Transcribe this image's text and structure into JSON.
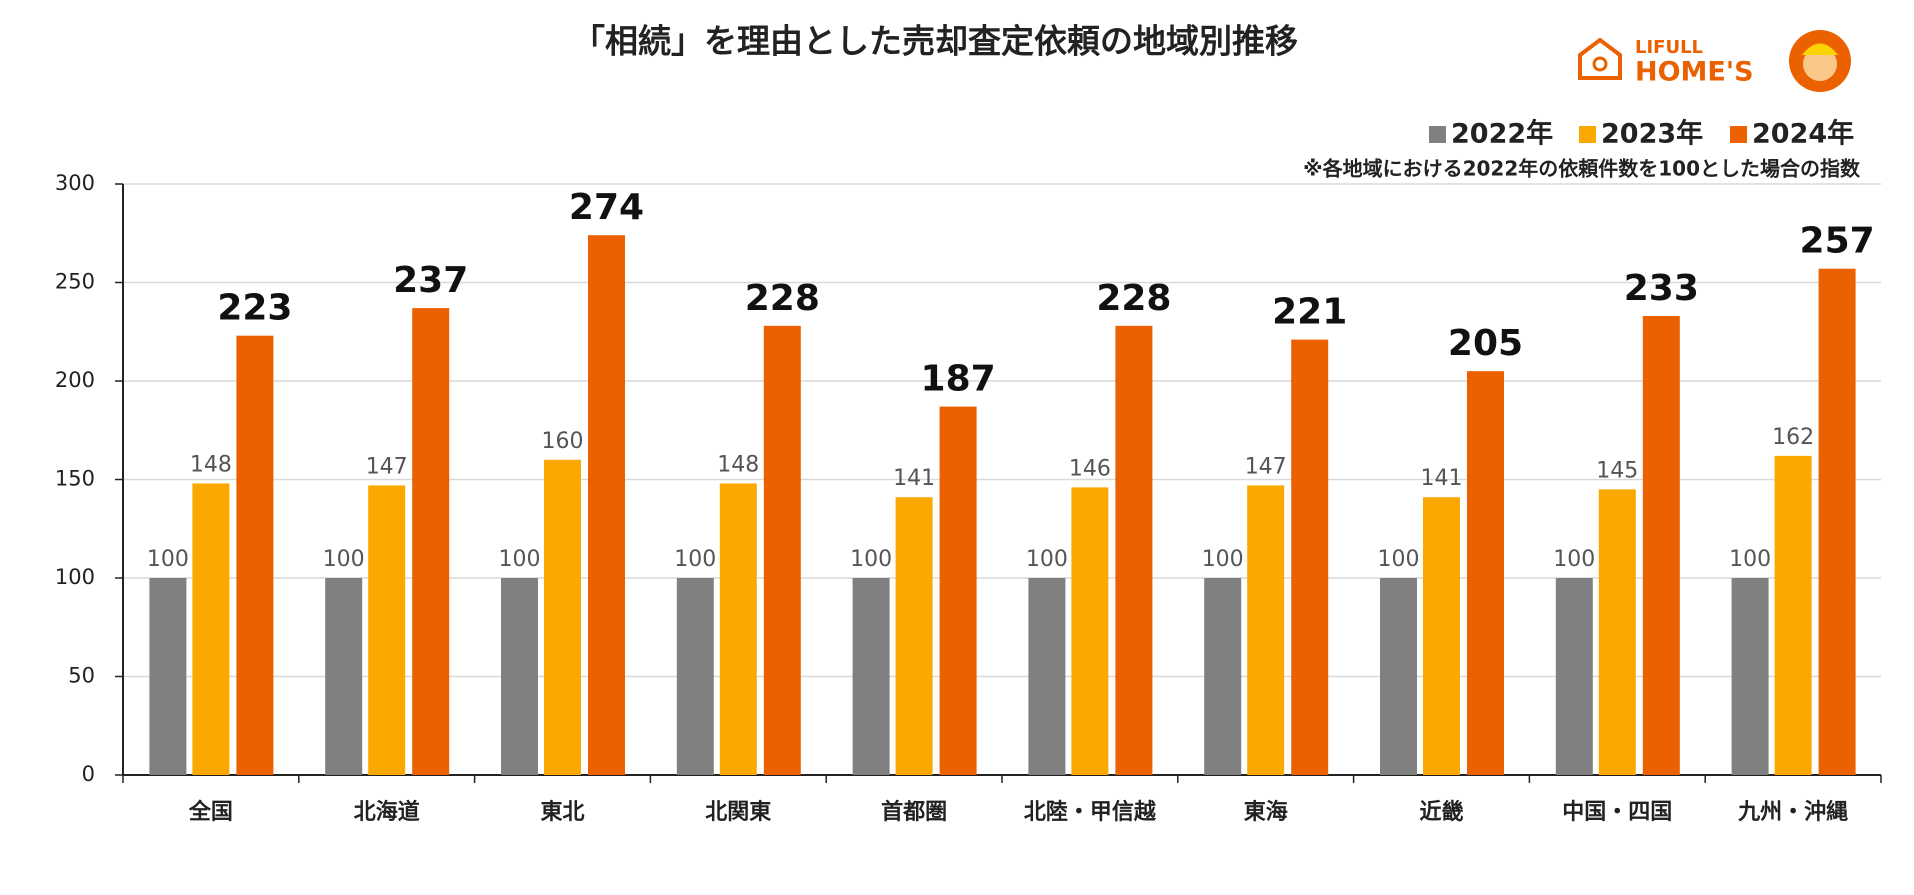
{
  "chart_data": {
    "type": "bar",
    "title": "「相続」を理由とした売却査定依頼の地域別推移",
    "note": "※各地域における2022年の依頼件数を100とした場合の指数",
    "logo": {
      "line1": "LIFULL",
      "line2": "HOME'S"
    },
    "categories": [
      "全国",
      "北海道",
      "東北",
      "北関東",
      "首都圏",
      "北陸・甲信越",
      "東海",
      "近畿",
      "中国・四国",
      "九州・沖縄"
    ],
    "series": [
      {
        "name": "2022年",
        "color": "#808080",
        "values": [
          100,
          100,
          100,
          100,
          100,
          100,
          100,
          100,
          100,
          100
        ]
      },
      {
        "name": "2023年",
        "color": "#FBA900",
        "values": [
          148,
          147,
          160,
          148,
          141,
          146,
          147,
          141,
          145,
          162
        ]
      },
      {
        "name": "2024年",
        "color": "#EB6100",
        "values": [
          223,
          237,
          274,
          228,
          187,
          228,
          221,
          205,
          233,
          257
        ]
      }
    ],
    "ylim": [
      0,
      300
    ],
    "yticks": [
      0,
      50,
      100,
      150,
      200,
      250,
      300
    ],
    "grid": true,
    "legend": "top-right"
  }
}
